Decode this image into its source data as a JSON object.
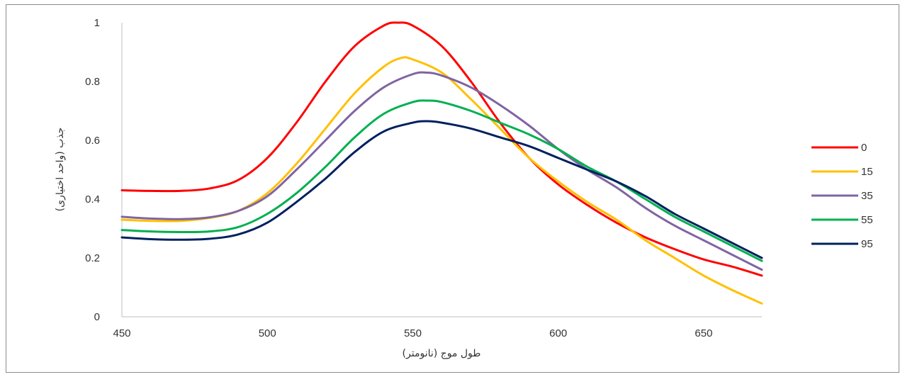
{
  "chart_data": {
    "type": "line",
    "title": "",
    "xlabel": "طول موج (نانومتر)",
    "ylabel": "جذب (واحد اختیاری)",
    "xlim": [
      450,
      670
    ],
    "ylim": [
      0,
      1
    ],
    "x_ticks": [
      "450",
      "500",
      "550",
      "600",
      "650"
    ],
    "y_ticks": [
      "0",
      "0.2",
      "0.4",
      "0.6",
      "0.8",
      "1"
    ],
    "grid": false,
    "legend_position": "right",
    "series": [
      {
        "name": "0",
        "color": "#ff0000",
        "points": [
          [
            450,
            0.43
          ],
          [
            460,
            0.428
          ],
          [
            470,
            0.428
          ],
          [
            480,
            0.436
          ],
          [
            490,
            0.465
          ],
          [
            500,
            0.54
          ],
          [
            510,
            0.66
          ],
          [
            520,
            0.8
          ],
          [
            530,
            0.92
          ],
          [
            540,
            0.99
          ],
          [
            545,
            1.0
          ],
          [
            550,
            0.99
          ],
          [
            560,
            0.92
          ],
          [
            570,
            0.8
          ],
          [
            580,
            0.66
          ],
          [
            590,
            0.54
          ],
          [
            600,
            0.45
          ],
          [
            610,
            0.38
          ],
          [
            620,
            0.32
          ],
          [
            630,
            0.27
          ],
          [
            640,
            0.23
          ],
          [
            650,
            0.195
          ],
          [
            660,
            0.17
          ],
          [
            670,
            0.14
          ]
        ]
      },
      {
        "name": "15",
        "color": "#ffc000",
        "points": [
          [
            450,
            0.33
          ],
          [
            460,
            0.326
          ],
          [
            470,
            0.326
          ],
          [
            480,
            0.336
          ],
          [
            490,
            0.36
          ],
          [
            500,
            0.42
          ],
          [
            510,
            0.52
          ],
          [
            520,
            0.64
          ],
          [
            530,
            0.76
          ],
          [
            540,
            0.85
          ],
          [
            546,
            0.88
          ],
          [
            550,
            0.875
          ],
          [
            560,
            0.83
          ],
          [
            570,
            0.74
          ],
          [
            580,
            0.64
          ],
          [
            590,
            0.54
          ],
          [
            600,
            0.46
          ],
          [
            610,
            0.39
          ],
          [
            620,
            0.33
          ],
          [
            630,
            0.26
          ],
          [
            640,
            0.2
          ],
          [
            650,
            0.14
          ],
          [
            660,
            0.09
          ],
          [
            670,
            0.045
          ]
        ]
      },
      {
        "name": "35",
        "color": "#8064a2",
        "points": [
          [
            450,
            0.34
          ],
          [
            460,
            0.334
          ],
          [
            470,
            0.332
          ],
          [
            480,
            0.338
          ],
          [
            490,
            0.36
          ],
          [
            500,
            0.41
          ],
          [
            510,
            0.5
          ],
          [
            520,
            0.6
          ],
          [
            530,
            0.7
          ],
          [
            540,
            0.78
          ],
          [
            550,
            0.825
          ],
          [
            555,
            0.83
          ],
          [
            560,
            0.82
          ],
          [
            570,
            0.78
          ],
          [
            580,
            0.72
          ],
          [
            590,
            0.65
          ],
          [
            600,
            0.57
          ],
          [
            610,
            0.5
          ],
          [
            620,
            0.44
          ],
          [
            630,
            0.37
          ],
          [
            640,
            0.31
          ],
          [
            650,
            0.26
          ],
          [
            660,
            0.21
          ],
          [
            670,
            0.16
          ]
        ]
      },
      {
        "name": "55",
        "color": "#00b050",
        "points": [
          [
            450,
            0.295
          ],
          [
            460,
            0.29
          ],
          [
            470,
            0.288
          ],
          [
            480,
            0.29
          ],
          [
            490,
            0.305
          ],
          [
            500,
            0.35
          ],
          [
            510,
            0.42
          ],
          [
            520,
            0.51
          ],
          [
            530,
            0.61
          ],
          [
            540,
            0.69
          ],
          [
            550,
            0.73
          ],
          [
            555,
            0.735
          ],
          [
            560,
            0.73
          ],
          [
            570,
            0.7
          ],
          [
            580,
            0.66
          ],
          [
            590,
            0.62
          ],
          [
            600,
            0.57
          ],
          [
            610,
            0.51
          ],
          [
            620,
            0.46
          ],
          [
            630,
            0.4
          ],
          [
            640,
            0.34
          ],
          [
            650,
            0.29
          ],
          [
            660,
            0.24
          ],
          [
            670,
            0.19
          ]
        ]
      },
      {
        "name": "95",
        "color": "#002060",
        "points": [
          [
            450,
            0.27
          ],
          [
            460,
            0.264
          ],
          [
            470,
            0.262
          ],
          [
            480,
            0.265
          ],
          [
            490,
            0.28
          ],
          [
            500,
            0.32
          ],
          [
            510,
            0.39
          ],
          [
            520,
            0.47
          ],
          [
            530,
            0.56
          ],
          [
            540,
            0.63
          ],
          [
            550,
            0.66
          ],
          [
            555,
            0.665
          ],
          [
            560,
            0.66
          ],
          [
            570,
            0.64
          ],
          [
            580,
            0.61
          ],
          [
            590,
            0.58
          ],
          [
            600,
            0.54
          ],
          [
            610,
            0.5
          ],
          [
            620,
            0.46
          ],
          [
            630,
            0.41
          ],
          [
            640,
            0.35
          ],
          [
            650,
            0.3
          ],
          [
            660,
            0.25
          ],
          [
            670,
            0.2
          ]
        ]
      }
    ]
  }
}
